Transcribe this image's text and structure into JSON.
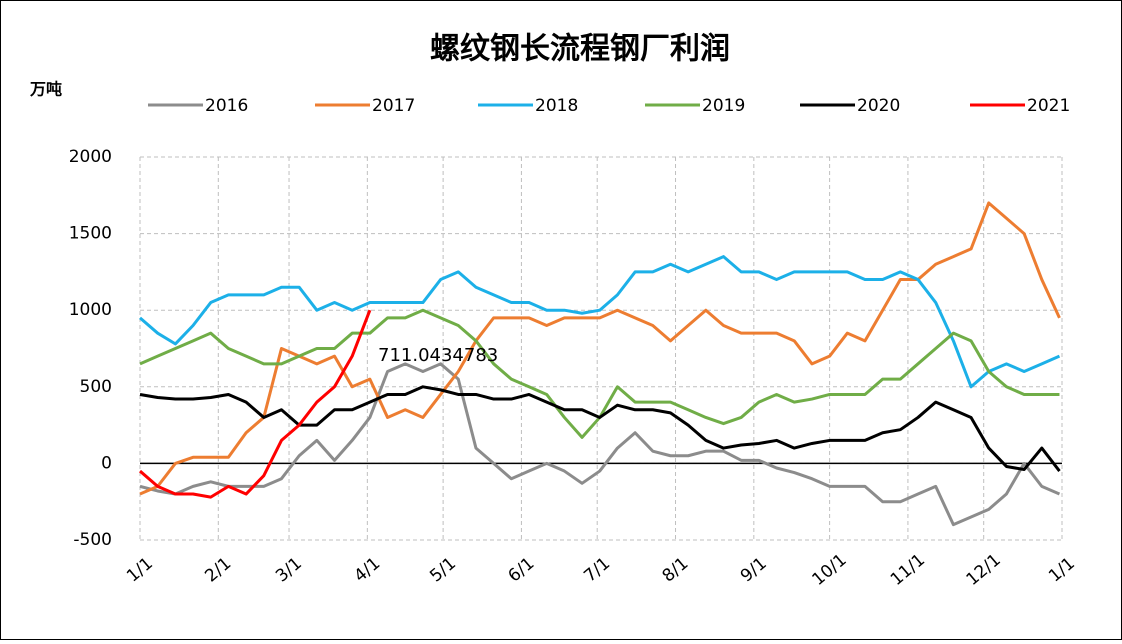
{
  "chart_data": {
    "type": "line",
    "title": "螺纹钢长流程钢厂利润",
    "y_label": "万吨",
    "annotations": [
      "711.0434783"
    ],
    "x": [
      0,
      7,
      14,
      21,
      28,
      35,
      42,
      49,
      56,
      63,
      70,
      77,
      84,
      91,
      98,
      105,
      112,
      119,
      126,
      133,
      140,
      147,
      154,
      161,
      168,
      175,
      182,
      189,
      196,
      203,
      210,
      217,
      224,
      231,
      238,
      245,
      252,
      259,
      266,
      273,
      280,
      287,
      294,
      301,
      308,
      315,
      322,
      329,
      336,
      343,
      350,
      357,
      364
    ],
    "xlim": [
      0,
      365
    ],
    "xticks": [
      {
        "value": 0,
        "label": "1/1"
      },
      {
        "value": 31,
        "label": "2/1"
      },
      {
        "value": 59,
        "label": "3/1"
      },
      {
        "value": 90,
        "label": "4/1"
      },
      {
        "value": 120,
        "label": "5/1"
      },
      {
        "value": 151,
        "label": "6/1"
      },
      {
        "value": 181,
        "label": "7/1"
      },
      {
        "value": 212,
        "label": "8/1"
      },
      {
        "value": 243,
        "label": "9/1"
      },
      {
        "value": 273,
        "label": "10/1"
      },
      {
        "value": 304,
        "label": "11/1"
      },
      {
        "value": 334,
        "label": "12/1"
      },
      {
        "value": 365,
        "label": "1/1"
      }
    ],
    "ylim": [
      -500,
      2000
    ],
    "yticks": [
      -500,
      0,
      500,
      1000,
      1500,
      2000
    ],
    "grid": true,
    "legend": "top",
    "series": [
      {
        "name": "2016",
        "color": "#8c8c8c",
        "values": [
          -150,
          -180,
          -200,
          -150,
          -120,
          -150,
          -150,
          -150,
          -100,
          50,
          150,
          20,
          150,
          300,
          600,
          650,
          600,
          650,
          550,
          100,
          0,
          -100,
          -50,
          0,
          -50,
          -130,
          -50,
          100,
          200,
          80,
          50,
          50,
          80,
          80,
          20,
          20,
          -30,
          -60,
          -100,
          -150,
          -150,
          -150,
          -250,
          -250,
          -200,
          -150,
          -400,
          -350,
          -300,
          -200,
          0,
          -150,
          -200
        ]
      },
      {
        "name": "2017",
        "color": "#ed7d31",
        "values": [
          -200,
          -150,
          0,
          40,
          40,
          40,
          200,
          300,
          750,
          700,
          650,
          700,
          500,
          550,
          300,
          350,
          300,
          450,
          600,
          800,
          950,
          950,
          950,
          900,
          950,
          950,
          950,
          1000,
          950,
          900,
          800,
          900,
          1000,
          900,
          850,
          850,
          850,
          800,
          650,
          700,
          850,
          800,
          1000,
          1200,
          1200,
          1300,
          1350,
          1400,
          1700,
          1600,
          1500,
          1200,
          950
        ]
      },
      {
        "name": "2018",
        "color": "#1cb0e8",
        "values": [
          950,
          850,
          780,
          900,
          1050,
          1100,
          1100,
          1100,
          1150,
          1150,
          1000,
          1050,
          1000,
          1050,
          1050,
          1050,
          1050,
          1200,
          1250,
          1150,
          1100,
          1050,
          1050,
          1000,
          1000,
          980,
          1000,
          1100,
          1250,
          1250,
          1300,
          1250,
          1300,
          1350,
          1250,
          1250,
          1200,
          1250,
          1250,
          1250,
          1250,
          1200,
          1200,
          1250,
          1200,
          1050,
          800,
          500,
          600,
          650,
          600,
          650,
          700
        ]
      },
      {
        "name": "2019",
        "color": "#70ad47",
        "values": [
          650,
          700,
          750,
          800,
          850,
          750,
          700,
          650,
          650,
          700,
          750,
          750,
          850,
          850,
          950,
          950,
          1000,
          950,
          900,
          800,
          650,
          550,
          500,
          450,
          300,
          170,
          300,
          500,
          400,
          400,
          400,
          350,
          300,
          260,
          300,
          400,
          450,
          400,
          420,
          450,
          450,
          450,
          550,
          550,
          650,
          750,
          850,
          800,
          600,
          500,
          450,
          450,
          450
        ]
      },
      {
        "name": "2020",
        "color": "#000000",
        "values": [
          450,
          430,
          420,
          420,
          430,
          450,
          400,
          300,
          350,
          250,
          250,
          350,
          350,
          400,
          450,
          450,
          500,
          480,
          450,
          450,
          420,
          420,
          450,
          400,
          350,
          350,
          300,
          380,
          350,
          350,
          330,
          250,
          150,
          100,
          120,
          130,
          150,
          100,
          130,
          150,
          150,
          150,
          200,
          220,
          300,
          400,
          350,
          300,
          100,
          -20,
          -40,
          100,
          -50
        ]
      },
      {
        "name": "2021",
        "color": "#ff0000",
        "values": [
          -50,
          -150,
          -200,
          -200,
          -220,
          -150,
          -200,
          -80,
          150,
          250,
          400,
          500,
          700,
          1000,
          null,
          null,
          null,
          null,
          null,
          null,
          null,
          null,
          null,
          null,
          null,
          null,
          null,
          null,
          null,
          null,
          null,
          null,
          null,
          null,
          null,
          null,
          null,
          null,
          null,
          null,
          null,
          null,
          null,
          null,
          null,
          null,
          null,
          null,
          null,
          null,
          null,
          null,
          null
        ]
      }
    ]
  }
}
